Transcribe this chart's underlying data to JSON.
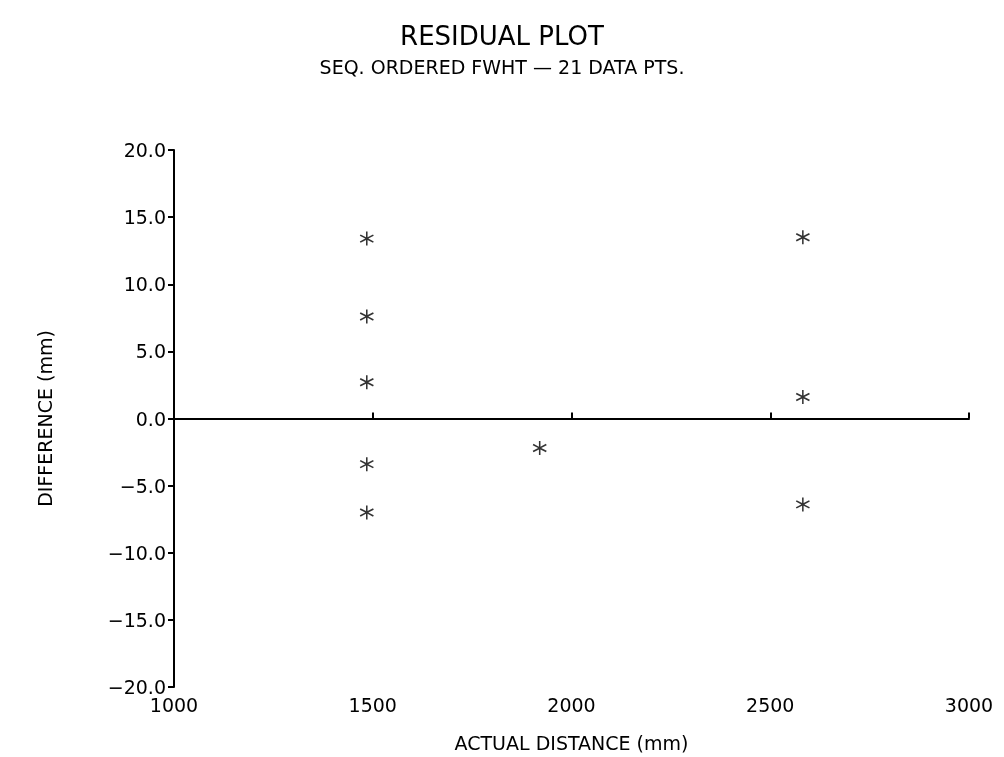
{
  "chart_data": {
    "type": "scatter",
    "title": "RESIDUAL PLOT",
    "subtitle": "SEQ. ORDERED FWHT — 21 DATA PTS.",
    "xlabel": "ACTUAL DISTANCE (mm)",
    "ylabel": "DIFFERENCE (mm)",
    "x": [
      1485,
      1485,
      1485,
      1485,
      1485,
      1920,
      2582,
      2582,
      2582
    ],
    "values": [
      13.4,
      7.6,
      2.7,
      -3.4,
      -7.0,
      -2.2,
      13.5,
      1.6,
      -6.4
    ],
    "color": "#000000",
    "marker": "star",
    "xlim": [
      1000,
      3000
    ],
    "xticks": [
      1000,
      1500,
      2000,
      2500,
      3000
    ],
    "ylim": [
      -20,
      20
    ],
    "yticks": [
      {
        "value": -20,
        "label": "−20.0"
      },
      {
        "value": -15,
        "label": "−15.0"
      },
      {
        "value": -10,
        "label": "−10.0"
      },
      {
        "value": -5,
        "label": "−5.0"
      },
      {
        "value": 0,
        "label": "0.0"
      },
      {
        "value": 5,
        "label": "5.0"
      },
      {
        "value": 10,
        "label": "10.0"
      },
      {
        "value": 15,
        "label": "15.0"
      },
      {
        "value": 20,
        "label": "20.0"
      }
    ]
  }
}
